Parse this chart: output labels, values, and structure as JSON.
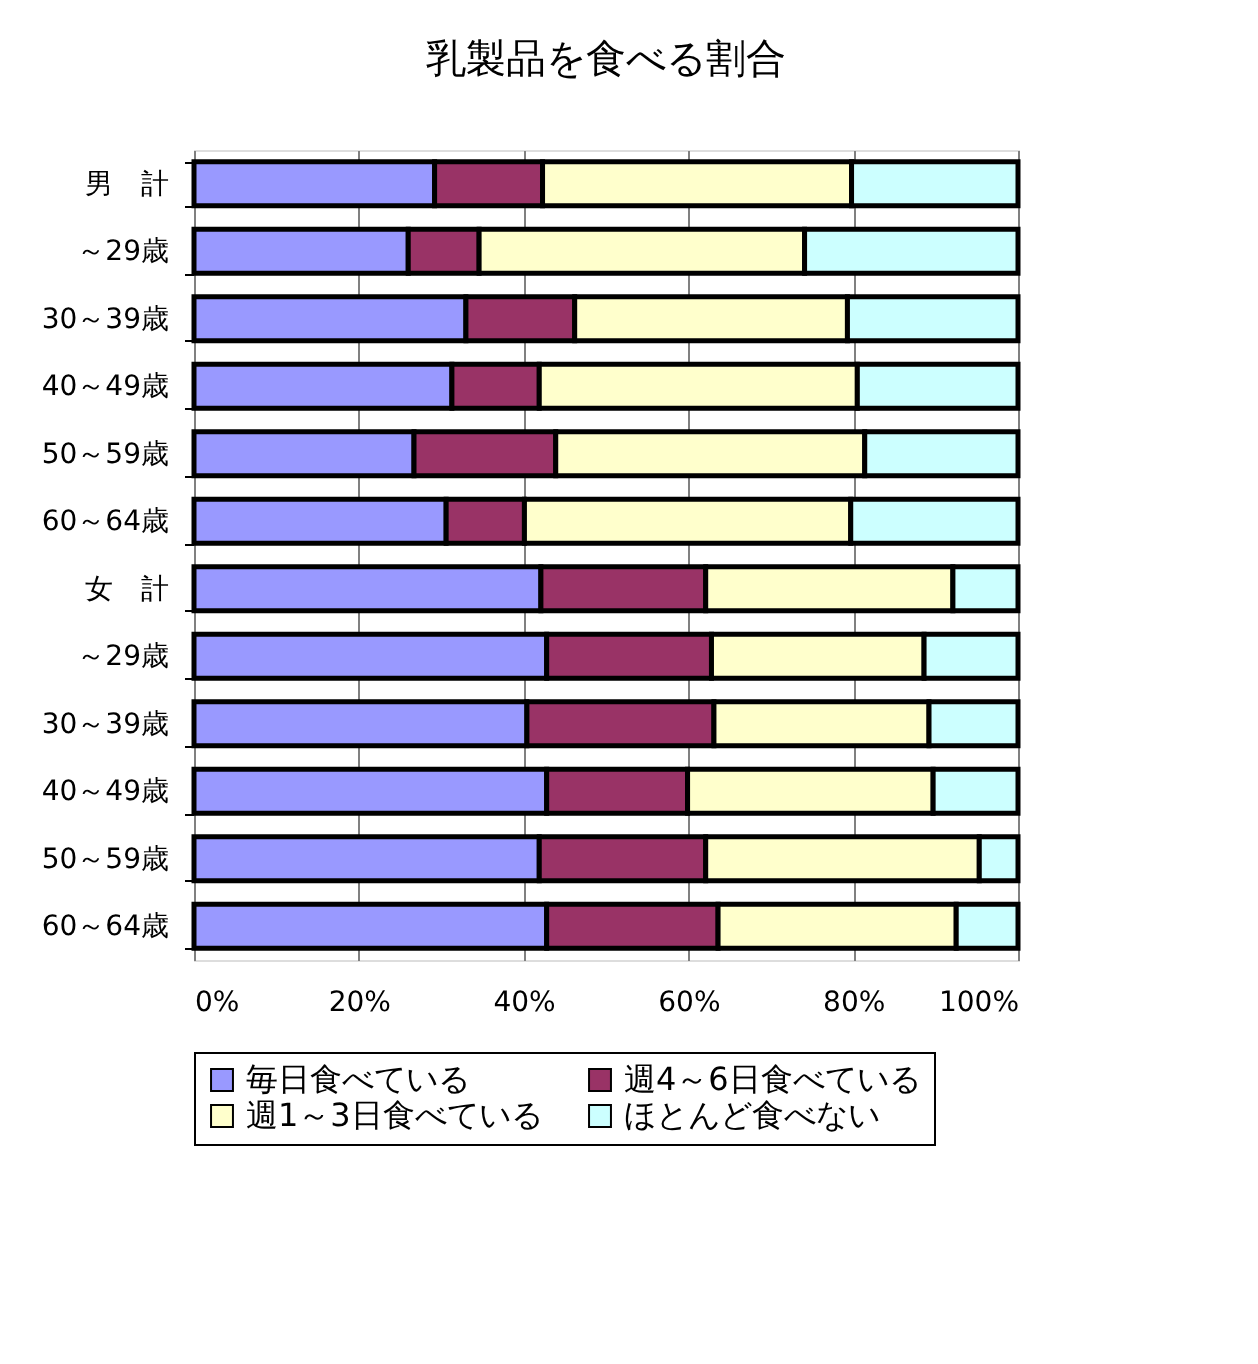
{
  "chart_data": {
    "type": "bar",
    "orientation": "horizontal",
    "stacked": true,
    "title": "乳製品を食べる割合",
    "categories": [
      "男　計",
      "～29歳",
      "30～39歳",
      "40～49歳",
      "50～59歳",
      "60～64歳",
      "女　計",
      "～29歳",
      "30～39歳",
      "40～49歳",
      "50～59歳",
      "60～64歳"
    ],
    "series": [
      {
        "name": "毎日食べている",
        "color": "#9999ff",
        "values": [
          29.2,
          26.0,
          33.0,
          31.3,
          26.7,
          30.6,
          42.1,
          42.8,
          40.4,
          42.8,
          41.9,
          42.8
        ]
      },
      {
        "name": "週4～6日食べている",
        "color": "#993366",
        "values": [
          13.1,
          8.6,
          13.2,
          10.6,
          17.2,
          9.5,
          20.0,
          20.0,
          22.7,
          17.1,
          20.2,
          20.8
        ]
      },
      {
        "name": "週1～3日食べている",
        "color": "#ffffcc",
        "values": [
          37.5,
          39.5,
          33.1,
          38.6,
          37.5,
          39.6,
          30.0,
          25.8,
          26.1,
          29.8,
          33.2,
          28.9
        ]
      },
      {
        "name": "ほとんど食べない",
        "color": "#ccffff",
        "values": [
          20.2,
          25.9,
          20.7,
          19.5,
          18.6,
          20.3,
          7.9,
          11.4,
          10.8,
          10.3,
          4.7,
          7.5
        ]
      }
    ],
    "xlim": [
      0,
      100
    ],
    "xticks": [
      {
        "value": 0,
        "label": "0%"
      },
      {
        "value": 20,
        "label": "20%"
      },
      {
        "value": 40,
        "label": "40%"
      },
      {
        "value": 60,
        "label": "60%"
      },
      {
        "value": 80,
        "label": "80%"
      },
      {
        "value": 100,
        "label": "100%"
      }
    ],
    "grid": "x",
    "legend": "bottom"
  }
}
